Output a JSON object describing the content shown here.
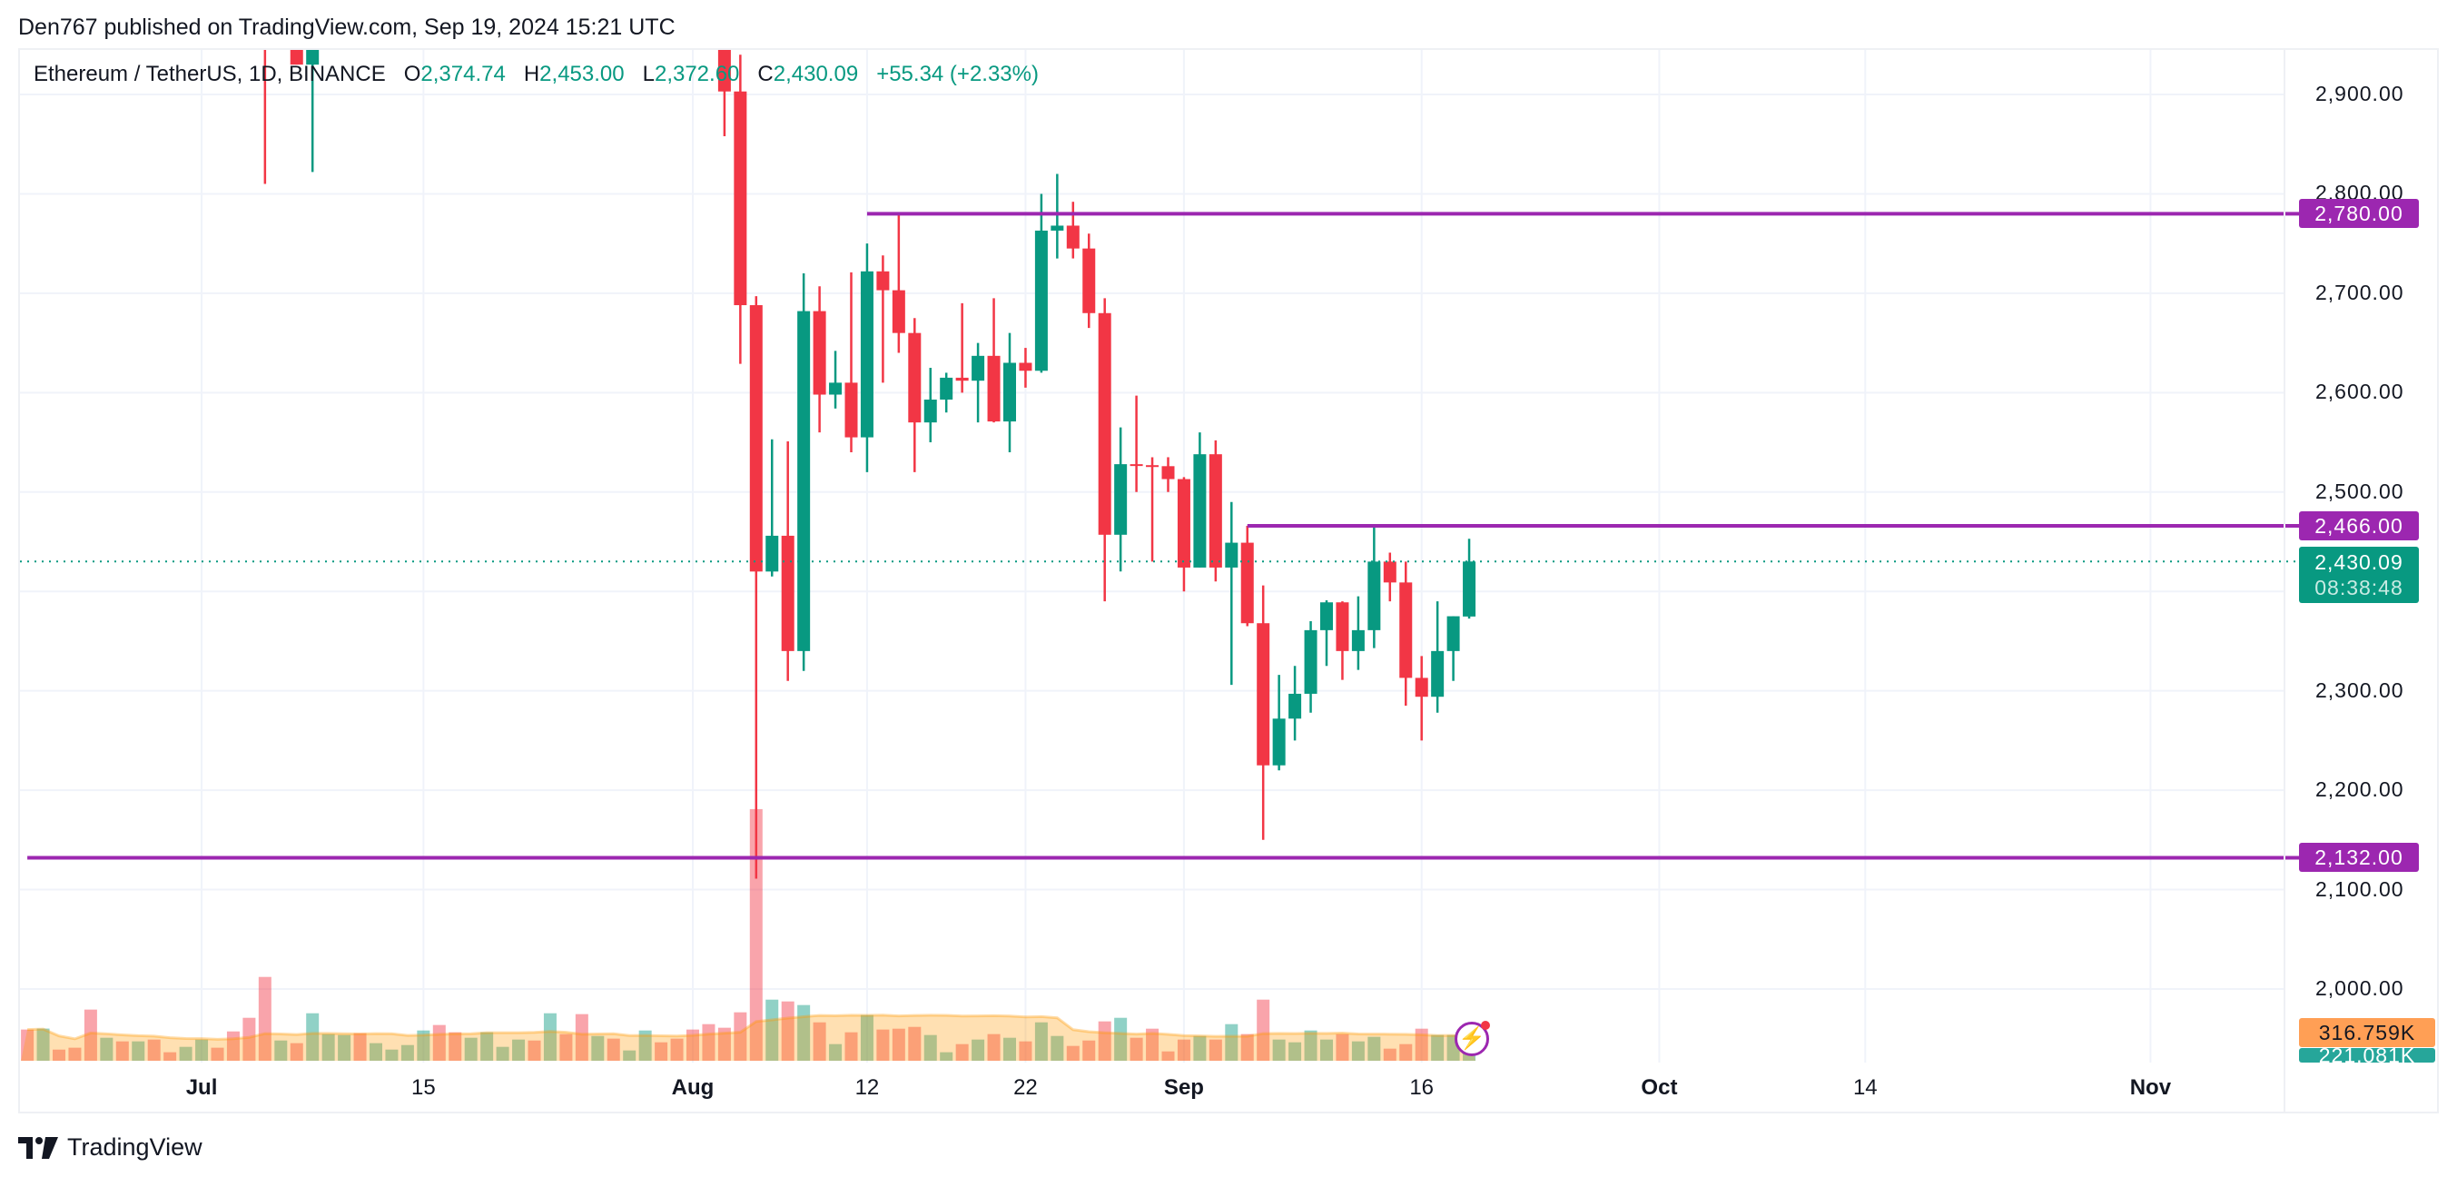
{
  "header": {
    "published": "Den767 published on TradingView.com, Sep 19, 2024 15:21 UTC"
  },
  "legend": {
    "symbol": "Ethereum / TetherUS, 1D, BINANCE",
    "o_label": "O",
    "o": "2,374.74",
    "h_label": "H",
    "h": "2,453.00",
    "l_label": "L",
    "l": "2,372.60",
    "c_label": "C",
    "c": "2,430.09",
    "change": "+55.34 (+2.33%)"
  },
  "price_axis": {
    "ticks": [
      "2,900.00",
      "2,800.00",
      "2,700.00",
      "2,600.00",
      "2,500.00",
      "2,300.00",
      "2,200.00",
      "2,100.00",
      "2,000.00"
    ]
  },
  "tags": {
    "res_high": "2,780.00",
    "res_mid": "2,466.00",
    "last_price": "2,430.09",
    "countdown": "08:38:48",
    "support": "2,132.00",
    "volume_ma": "316.759K",
    "volume": "221.081K"
  },
  "date_axis": [
    {
      "label": "Jul",
      "date": "2024-07-01",
      "month": true
    },
    {
      "label": "15",
      "date": "2024-07-15",
      "month": false
    },
    {
      "label": "Aug",
      "date": "2024-08-01",
      "month": true
    },
    {
      "label": "12",
      "date": "2024-08-12",
      "month": false
    },
    {
      "label": "22",
      "date": "2024-08-22",
      "month": false
    },
    {
      "label": "Sep",
      "date": "2024-09-01",
      "month": true
    },
    {
      "label": "16",
      "date": "2024-09-16",
      "month": false
    },
    {
      "label": "Oct",
      "date": "2024-10-01",
      "month": true
    },
    {
      "label": "14",
      "date": "2024-10-14",
      "month": false
    },
    {
      "label": "Nov",
      "date": "2024-11-01",
      "month": true
    }
  ],
  "footer": {
    "brand": "TradingView"
  },
  "colors": {
    "up": "#089981",
    "down": "#f23645",
    "level": "#9c27b0",
    "volume_ma": "#ff9800",
    "grid": "#f0f3fa"
  },
  "icons": {
    "alert": "lightning-icon",
    "logo": "tradingview-logo-icon"
  },
  "chart_data": {
    "type": "candlestick",
    "interval": "1D",
    "y_range": [
      2000,
      2945
    ],
    "grid": true,
    "levels": [
      {
        "price": 2780,
        "from": "2024-08-12"
      },
      {
        "price": 2466,
        "from": "2024-09-05"
      },
      {
        "price": 2132,
        "from": "2024-06-20"
      }
    ],
    "last_price": 2430.09,
    "candles": [
      [
        "2024-07-05",
        3063,
        3113,
        2810,
        2981
      ],
      [
        "2024-07-06",
        2981,
        3079,
        2960,
        3067
      ],
      [
        "2024-07-07",
        3067,
        3075,
        2930,
        2930
      ],
      [
        "2024-07-08",
        2930,
        3100,
        2822,
        3020
      ],
      [
        "2024-08-02",
        3208,
        3220,
        2970,
        2988
      ],
      [
        "2024-08-03",
        2988,
        3016,
        2858,
        2903
      ],
      [
        "2024-08-04",
        2903,
        2940,
        2629,
        2688
      ],
      [
        "2024-08-05",
        2688,
        2697,
        2111,
        2420
      ],
      [
        "2024-08-06",
        2420,
        2553,
        2415,
        2456
      ],
      [
        "2024-08-07",
        2456,
        2551,
        2310,
        2340
      ],
      [
        "2024-08-08",
        2340,
        2720,
        2320,
        2682
      ],
      [
        "2024-08-09",
        2682,
        2707,
        2560,
        2598
      ],
      [
        "2024-08-10",
        2598,
        2642,
        2584,
        2610
      ],
      [
        "2024-08-11",
        2610,
        2721,
        2540,
        2555
      ],
      [
        "2024-08-12",
        2555,
        2750,
        2520,
        2722
      ],
      [
        "2024-08-13",
        2722,
        2738,
        2610,
        2703
      ],
      [
        "2024-08-14",
        2703,
        2780,
        2640,
        2660
      ],
      [
        "2024-08-15",
        2660,
        2675,
        2520,
        2570
      ],
      [
        "2024-08-16",
        2570,
        2625,
        2550,
        2593
      ],
      [
        "2024-08-17",
        2593,
        2620,
        2580,
        2615
      ],
      [
        "2024-08-18",
        2615,
        2690,
        2600,
        2612
      ],
      [
        "2024-08-19",
        2612,
        2650,
        2570,
        2637
      ],
      [
        "2024-08-20",
        2637,
        2695,
        2570,
        2571
      ],
      [
        "2024-08-21",
        2571,
        2660,
        2540,
        2630
      ],
      [
        "2024-08-22",
        2630,
        2645,
        2605,
        2622
      ],
      [
        "2024-08-23",
        2622,
        2800,
        2620,
        2763
      ],
      [
        "2024-08-24",
        2763,
        2820,
        2735,
        2768
      ],
      [
        "2024-08-25",
        2768,
        2792,
        2735,
        2745
      ],
      [
        "2024-08-26",
        2745,
        2760,
        2665,
        2680
      ],
      [
        "2024-08-27",
        2680,
        2695,
        2390,
        2457
      ],
      [
        "2024-08-28",
        2457,
        2565,
        2420,
        2528
      ],
      [
        "2024-08-29",
        2528,
        2597,
        2500,
        2527
      ],
      [
        "2024-08-30",
        2527,
        2535,
        2430,
        2526
      ],
      [
        "2024-08-31",
        2526,
        2535,
        2500,
        2513
      ],
      [
        "2024-09-01",
        2513,
        2515,
        2400,
        2424
      ],
      [
        "2024-09-02",
        2424,
        2560,
        2424,
        2538
      ],
      [
        "2024-09-03",
        2538,
        2552,
        2410,
        2424
      ],
      [
        "2024-09-04",
        2424,
        2490,
        2306,
        2449
      ],
      [
        "2024-09-05",
        2449,
        2466,
        2365,
        2368
      ],
      [
        "2024-09-06",
        2368,
        2406,
        2150,
        2225
      ],
      [
        "2024-09-07",
        2225,
        2316,
        2220,
        2272
      ],
      [
        "2024-09-08",
        2272,
        2325,
        2250,
        2297
      ],
      [
        "2024-09-09",
        2297,
        2370,
        2278,
        2361
      ],
      [
        "2024-09-10",
        2361,
        2391,
        2325,
        2389
      ],
      [
        "2024-09-11",
        2389,
        2390,
        2311,
        2340
      ],
      [
        "2024-09-12",
        2340,
        2395,
        2321,
        2361
      ],
      [
        "2024-09-13",
        2361,
        2466,
        2343,
        2430
      ],
      [
        "2024-09-14",
        2430,
        2439,
        2390,
        2409
      ],
      [
        "2024-09-15",
        2409,
        2430,
        2285,
        2313
      ],
      [
        "2024-09-16",
        2313,
        2335,
        2250,
        2294
      ],
      [
        "2024-09-17",
        2294,
        2390,
        2278,
        2340
      ],
      [
        "2024-09-18",
        2340,
        2375,
        2310,
        2375
      ],
      [
        "2024-09-19",
        2374.74,
        2453,
        2372.6,
        2430.09
      ]
    ],
    "volume_unit": "K",
    "volume_start": "2024-06-20",
    "volume": [
      330,
      340,
      118,
      138,
      541,
      243,
      205,
      205,
      224,
      90,
      147,
      224,
      138,
      310,
      454,
      886,
      214,
      186,
      502,
      282,
      272,
      291,
      186,
      118,
      166,
      320,
      378,
      301,
      243,
      301,
      147,
      224,
      214,
      502,
      282,
      493,
      262,
      234,
      109,
      320,
      195,
      234,
      330,
      387,
      349,
      512,
      2660,
      646,
      627,
      589,
      406,
      176,
      301,
      483,
      330,
      339,
      358,
      272,
      90,
      176,
      224,
      282,
      243,
      205,
      406,
      262,
      157,
      214,
      416,
      454,
      243,
      339,
      99,
      224,
      262,
      224,
      387,
      282,
      646,
      224,
      195,
      320,
      224,
      282,
      205,
      253,
      128,
      176,
      339,
      272,
      272,
      221
    ],
    "volume_direction": "rgrrrgrgrrggrrrrgrgggrggggrrggggrgrrgrggrrrrrrrgrgrgrgrrrggrgrgrggrrrgrrrrgrgrrggggrggrrrggg",
    "volume_ma_period": 20
  }
}
